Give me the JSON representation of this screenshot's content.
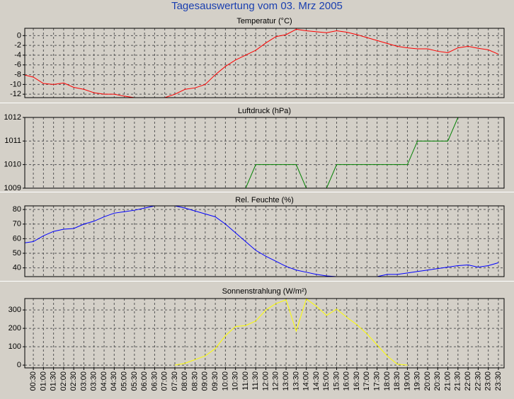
{
  "title": "Tagesauswertung vom 03. Mrz 2005",
  "x_axis": {
    "categories": [
      null,
      "00:30",
      "01:00",
      "01:30",
      "02:00",
      "02:30",
      "03:00",
      "03:30",
      "04:00",
      "04:30",
      "05:00",
      "05:30",
      "06:00",
      "06:30",
      "07:00",
      "07:30",
      "08:00",
      "08:30",
      "09:00",
      "09:30",
      "10:00",
      "10:30",
      "11:00",
      "11:30",
      "12:00",
      "12:30",
      "13:00",
      "13:30",
      "14:00",
      "14:30",
      "15:00",
      "15:30",
      "16:00",
      "16:30",
      "17:00",
      "17:30",
      "18:00",
      "18:30",
      "19:00",
      "19:30",
      "20:00",
      "20:30",
      "21:00",
      "21:30",
      "22:00",
      "22:30",
      "23:00",
      "23:30"
    ]
  },
  "chart_data": [
    {
      "type": "line",
      "title": "Temperatur (°C)",
      "color": "#ff0000",
      "grid": true,
      "ylim": [
        -12.7,
        1.5
      ],
      "yticks": [
        0,
        -2,
        -4,
        -6,
        -8,
        -10,
        -12
      ],
      "values": [
        -8,
        -8.5,
        -9.8,
        -10,
        -9.7,
        -10.6,
        -11,
        -11.7,
        -12,
        -12,
        -12.4,
        -12.7,
        -12.7,
        -12.7,
        -12.7,
        -12,
        -11,
        -10.7,
        -10,
        -8,
        -6.3,
        -5,
        -4,
        -3,
        -1.5,
        -0.2,
        0.2,
        1.3,
        1,
        0.8,
        0.6,
        1,
        0.7,
        0.2,
        -0.4,
        -1,
        -1.6,
        -2.2,
        -2.5,
        -2.7,
        -2.7,
        -3.2,
        -3.5,
        -2.5,
        -2.2,
        -2.6,
        -2.9,
        -3.8
      ]
    },
    {
      "type": "line",
      "title": "Luftdruck (hPa)",
      "color": "#008000",
      "grid": true,
      "ylim": [
        1009,
        1012
      ],
      "yticks": [
        1012,
        1011,
        1010,
        1009
      ],
      "values": [
        null,
        null,
        null,
        null,
        null,
        null,
        null,
        null,
        null,
        null,
        null,
        null,
        null,
        null,
        null,
        null,
        null,
        null,
        null,
        null,
        null,
        null,
        1009,
        1010,
        1010,
        1010,
        1010,
        1010,
        1009,
        1009,
        1009,
        1010,
        1010,
        1010,
        1010,
        1010,
        1010,
        1010,
        1010,
        1011,
        1011,
        1011,
        1011,
        1012,
        null,
        null,
        null,
        null
      ]
    },
    {
      "type": "line",
      "title": "Rel. Feuchte (%)",
      "color": "#0000ff",
      "grid": true,
      "ylim": [
        34,
        82.5
      ],
      "yticks": [
        80,
        70,
        60,
        50,
        40
      ],
      "values": [
        57,
        58,
        62,
        65,
        66.5,
        67,
        70,
        72,
        75,
        77.5,
        78.5,
        79.5,
        81,
        82.5,
        82.5,
        82.5,
        81,
        79,
        77,
        75,
        70,
        64,
        58,
        52,
        48,
        44.5,
        41,
        38.5,
        37,
        35.5,
        34.5,
        34,
        34,
        34,
        34,
        34,
        35.5,
        35.5,
        36.5,
        37.5,
        38.5,
        39.5,
        40.5,
        41.5,
        42,
        40.5,
        41.5,
        43.5
      ]
    },
    {
      "type": "line",
      "title": "Sonnenstrahlung (W/m²)",
      "color": "#ffff00",
      "grid": true,
      "ylim": [
        -15,
        362
      ],
      "yticks": [
        300,
        200,
        100,
        0
      ],
      "values": [
        null,
        null,
        null,
        null,
        null,
        null,
        null,
        null,
        null,
        null,
        null,
        null,
        null,
        null,
        null,
        0,
        10,
        30,
        50,
        90,
        160,
        210,
        215,
        240,
        300,
        335,
        355,
        185,
        360,
        320,
        270,
        305,
        260,
        220,
        170,
        110,
        50,
        5,
        0,
        null,
        null,
        null,
        null,
        null,
        null,
        null,
        null,
        null
      ]
    }
  ]
}
